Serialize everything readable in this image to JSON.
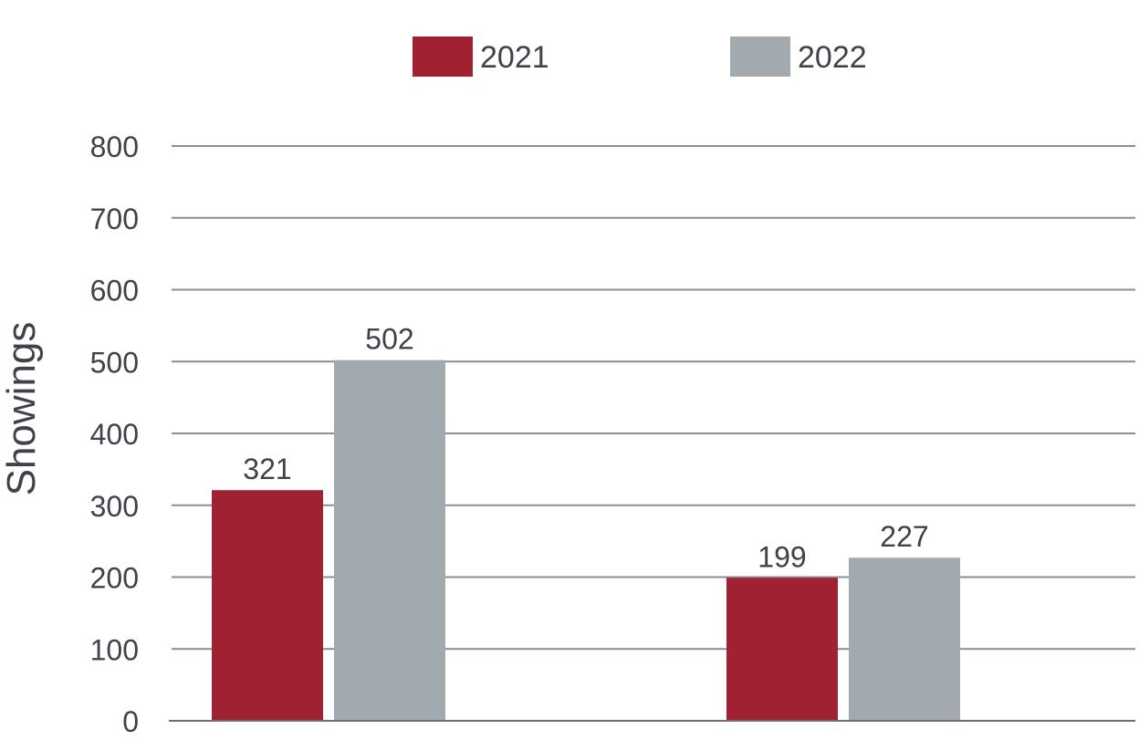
{
  "chart_data": {
    "type": "bar",
    "categories": [
      "",
      ""
    ],
    "series": [
      {
        "name": "2021",
        "values": [
          321,
          199
        ],
        "color": "#a02232"
      },
      {
        "name": "2022",
        "values": [
          502,
          227
        ],
        "color": "#a2aab0"
      }
    ],
    "title": "",
    "xlabel": "",
    "ylabel": "Showings",
    "ylim": [
      0,
      800
    ],
    "yticks": [
      0,
      100,
      200,
      300,
      400,
      500,
      600,
      700,
      800
    ],
    "grid": true,
    "legend_position": "top-center",
    "data_labels": true
  }
}
